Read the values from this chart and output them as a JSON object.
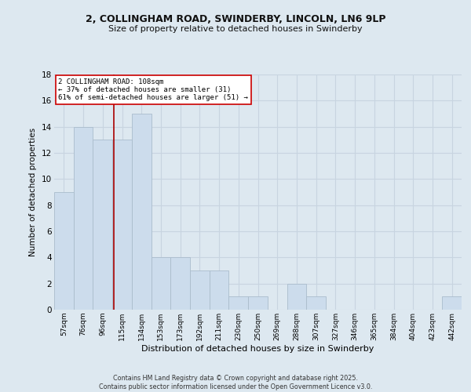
{
  "title_line1": "2, COLLINGHAM ROAD, SWINDERBY, LINCOLN, LN6 9LP",
  "title_line2": "Size of property relative to detached houses in Swinderby",
  "xlabel": "Distribution of detached houses by size in Swinderby",
  "ylabel": "Number of detached properties",
  "footer_line1": "Contains HM Land Registry data © Crown copyright and database right 2025.",
  "footer_line2": "Contains public sector information licensed under the Open Government Licence v3.0.",
  "categories": [
    "57sqm",
    "76sqm",
    "96sqm",
    "115sqm",
    "134sqm",
    "153sqm",
    "173sqm",
    "192sqm",
    "211sqm",
    "230sqm",
    "250sqm",
    "269sqm",
    "288sqm",
    "307sqm",
    "327sqm",
    "346sqm",
    "365sqm",
    "384sqm",
    "404sqm",
    "423sqm",
    "442sqm"
  ],
  "values": [
    9,
    14,
    13,
    13,
    15,
    4,
    4,
    3,
    3,
    1,
    1,
    0,
    2,
    1,
    0,
    0,
    0,
    0,
    0,
    0,
    1
  ],
  "bar_color": "#ccdcec",
  "bar_edge_color": "#aabccc",
  "grid_color": "#c8d4e0",
  "background_color": "#dde8f0",
  "vline_x": 2.58,
  "vline_color": "#aa0000",
  "annotation_text": "2 COLLINGHAM ROAD: 108sqm\n← 37% of detached houses are smaller (31)\n61% of semi-detached houses are larger (51) →",
  "annotation_box_color": "#ffffff",
  "annotation_box_edge": "#cc0000",
  "ylim": [
    0,
    18
  ],
  "yticks": [
    0,
    2,
    4,
    6,
    8,
    10,
    12,
    14,
    16,
    18
  ]
}
